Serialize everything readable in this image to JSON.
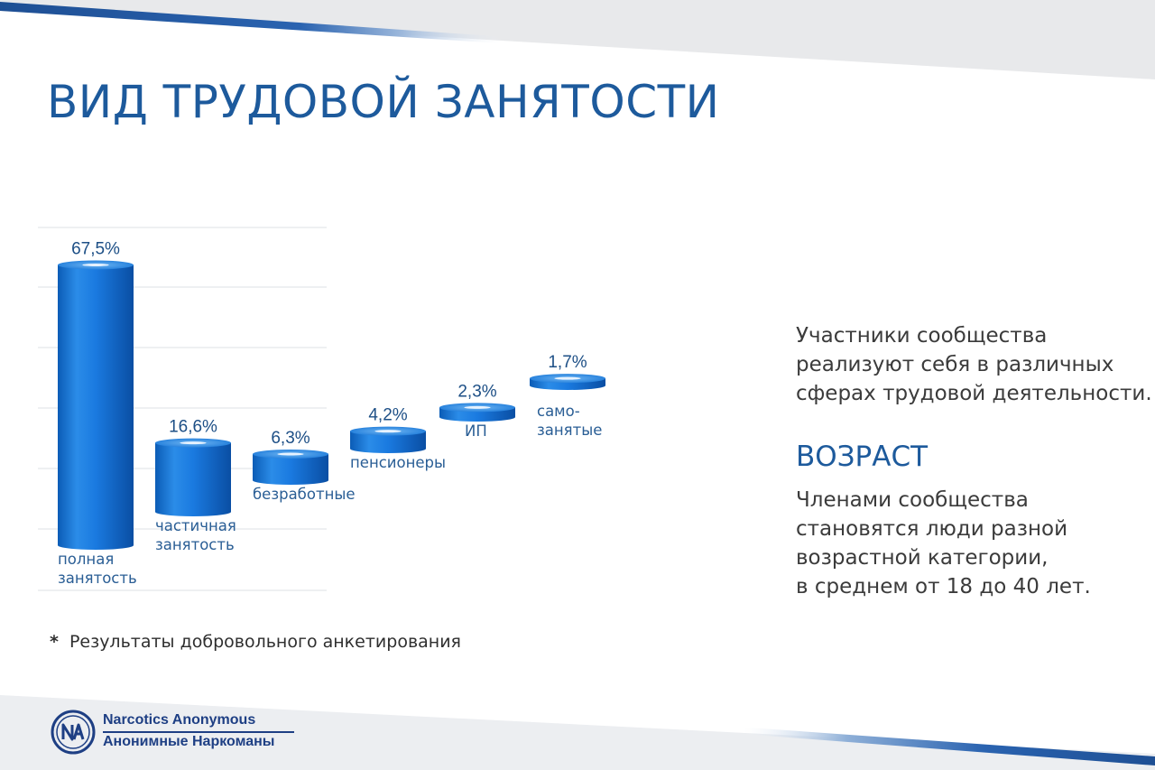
{
  "slide": {
    "title": "ВИД ТРУДОВОЙ ЗАНЯТОСТИ",
    "footnote_mark": "*",
    "footnote": "Результаты добровольного анкетирования"
  },
  "side_panel": {
    "intro_lines": [
      "Участники сообщества",
      "реализуют себя в различных",
      "сферах трудовой деятельности."
    ],
    "age_heading": "ВОЗРАСТ",
    "age_lines": [
      "Членами сообщества",
      "становятся люди разной",
      "возрастной категории,",
      "в среднем от 18 до 40 лет."
    ]
  },
  "branding": {
    "logo_icon": "na-logo-icon",
    "name_en": "Narcotics Anonymous",
    "name_ru": "Анонимные Наркоманы"
  },
  "colors": {
    "title_blue": "#1d5a9c",
    "cylinder_blue": "#1273d6",
    "band_dark": "#1e4f94"
  },
  "chart_data": {
    "type": "bar",
    "style": "3d-cylinder",
    "title": "",
    "xlabel": "",
    "ylabel": "",
    "grid": true,
    "categories": [
      [
        "полная",
        "занятость"
      ],
      [
        "частичная",
        "занятость"
      ],
      [
        "безработные"
      ],
      [
        "пенсионеры"
      ],
      [
        "ИП"
      ],
      [
        "само-",
        "занятые"
      ]
    ],
    "values": [
      67.5,
      16.6,
      6.3,
      4.2,
      2.3,
      1.7
    ],
    "value_labels": [
      "67,5%",
      "16,6%",
      "6,3%",
      "4,2%",
      "2,3%",
      "1,7%"
    ]
  }
}
